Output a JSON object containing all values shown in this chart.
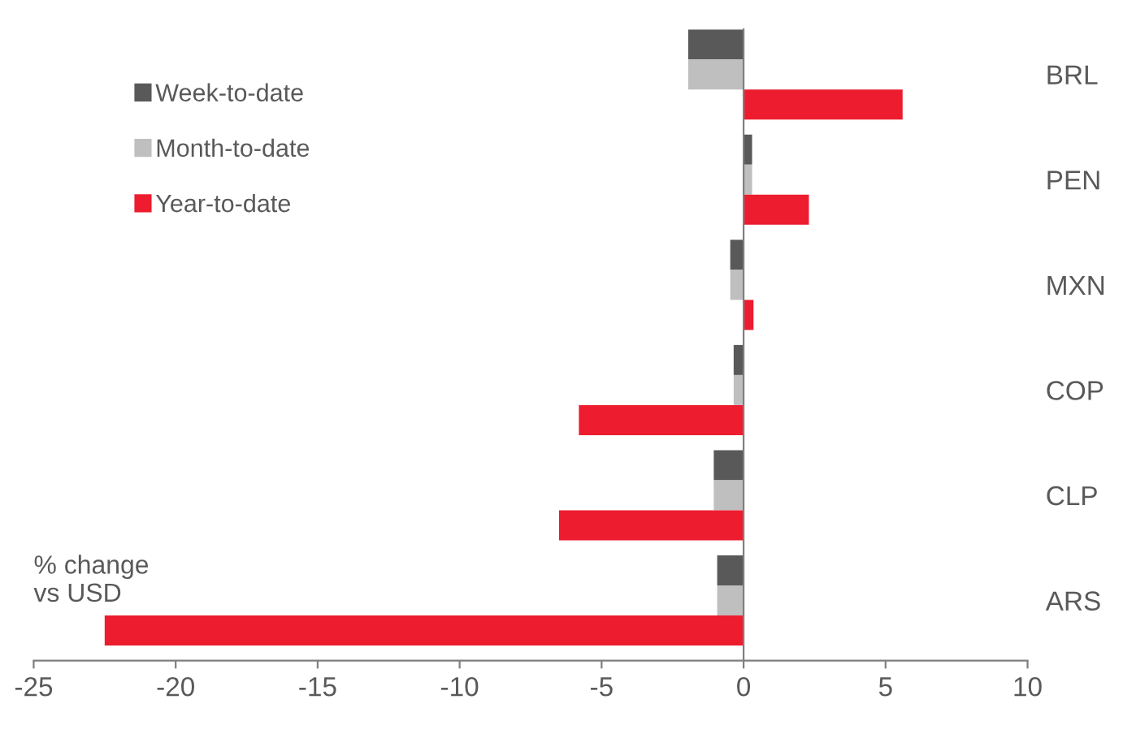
{
  "chart_data": {
    "type": "bar",
    "orientation": "horizontal",
    "categories": [
      "BRL",
      "PEN",
      "MXN",
      "COP",
      "CLP",
      "ARS"
    ],
    "series": [
      {
        "name": "Week-to-date",
        "color": "#595959",
        "values": [
          -1.95,
          0.3,
          -0.47,
          -0.35,
          -1.05,
          -0.93
        ]
      },
      {
        "name": "Month-to-date",
        "color": "#bfbfbf",
        "values": [
          -1.95,
          0.3,
          -0.47,
          -0.35,
          -1.05,
          -0.93
        ]
      },
      {
        "name": "Year-to-date",
        "color": "#ed1c2e",
        "values": [
          5.6,
          2.3,
          0.35,
          -5.8,
          -6.5,
          -22.5
        ]
      }
    ],
    "xlim": [
      -25,
      10
    ],
    "xticks": [
      -25,
      -20,
      -15,
      -10,
      -5,
      0,
      5,
      10
    ],
    "legend": "top left",
    "annotations": [
      "% change\nvs USD"
    ]
  }
}
